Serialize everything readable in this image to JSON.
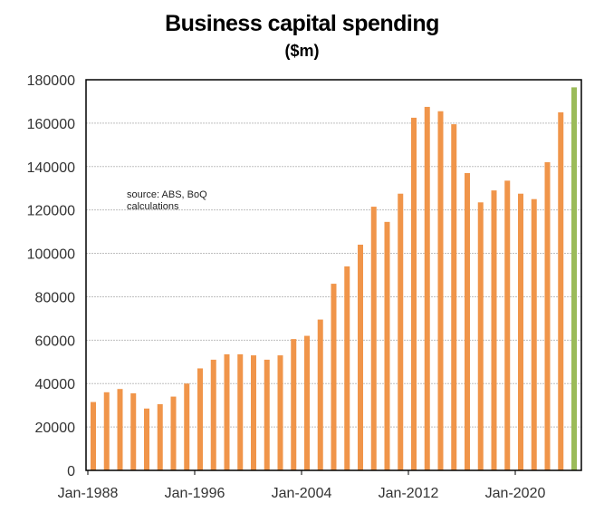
{
  "chart_data": {
    "type": "bar",
    "title": "Business capital spending",
    "subtitle": "($m)",
    "xlabel": "",
    "ylabel": "",
    "ylim": [
      0,
      180000
    ],
    "yticks": [
      0,
      20000,
      40000,
      60000,
      80000,
      100000,
      120000,
      140000,
      160000,
      180000
    ],
    "xtick_labels": [
      "Jan-1988",
      "Jan-1996",
      "Jan-2004",
      "Jan-2012",
      "Jan-2020"
    ],
    "xtick_every": 8,
    "grid": true,
    "annotation": "source:  ABS, BoQ calculations",
    "categories": [
      "1988",
      "1989",
      "1990",
      "1991",
      "1992",
      "1993",
      "1994",
      "1995",
      "1996",
      "1997",
      "1998",
      "1999",
      "2000",
      "2001",
      "2002",
      "2003",
      "2004",
      "2005",
      "2006",
      "2007",
      "2008",
      "2009",
      "2010",
      "2011",
      "2012",
      "2013",
      "2014",
      "2015",
      "2016",
      "2017",
      "2018",
      "2019",
      "2020",
      "2021",
      "2022",
      "2023",
      "2024"
    ],
    "values": [
      31500,
      36000,
      37500,
      35500,
      28500,
      30500,
      34000,
      40000,
      47000,
      51000,
      53500,
      53500,
      53000,
      51000,
      53000,
      60500,
      62000,
      69500,
      86000,
      94000,
      104000,
      121500,
      114500,
      127500,
      162500,
      167500,
      165500,
      159500,
      137000,
      123500,
      129000,
      133500,
      127500,
      125000,
      142000,
      165000,
      176500
    ],
    "colors": {
      "bar": "#f0954a",
      "highlight": "#9bbb59",
      "grid": "#bfbfbf"
    },
    "highlight_last": true
  }
}
